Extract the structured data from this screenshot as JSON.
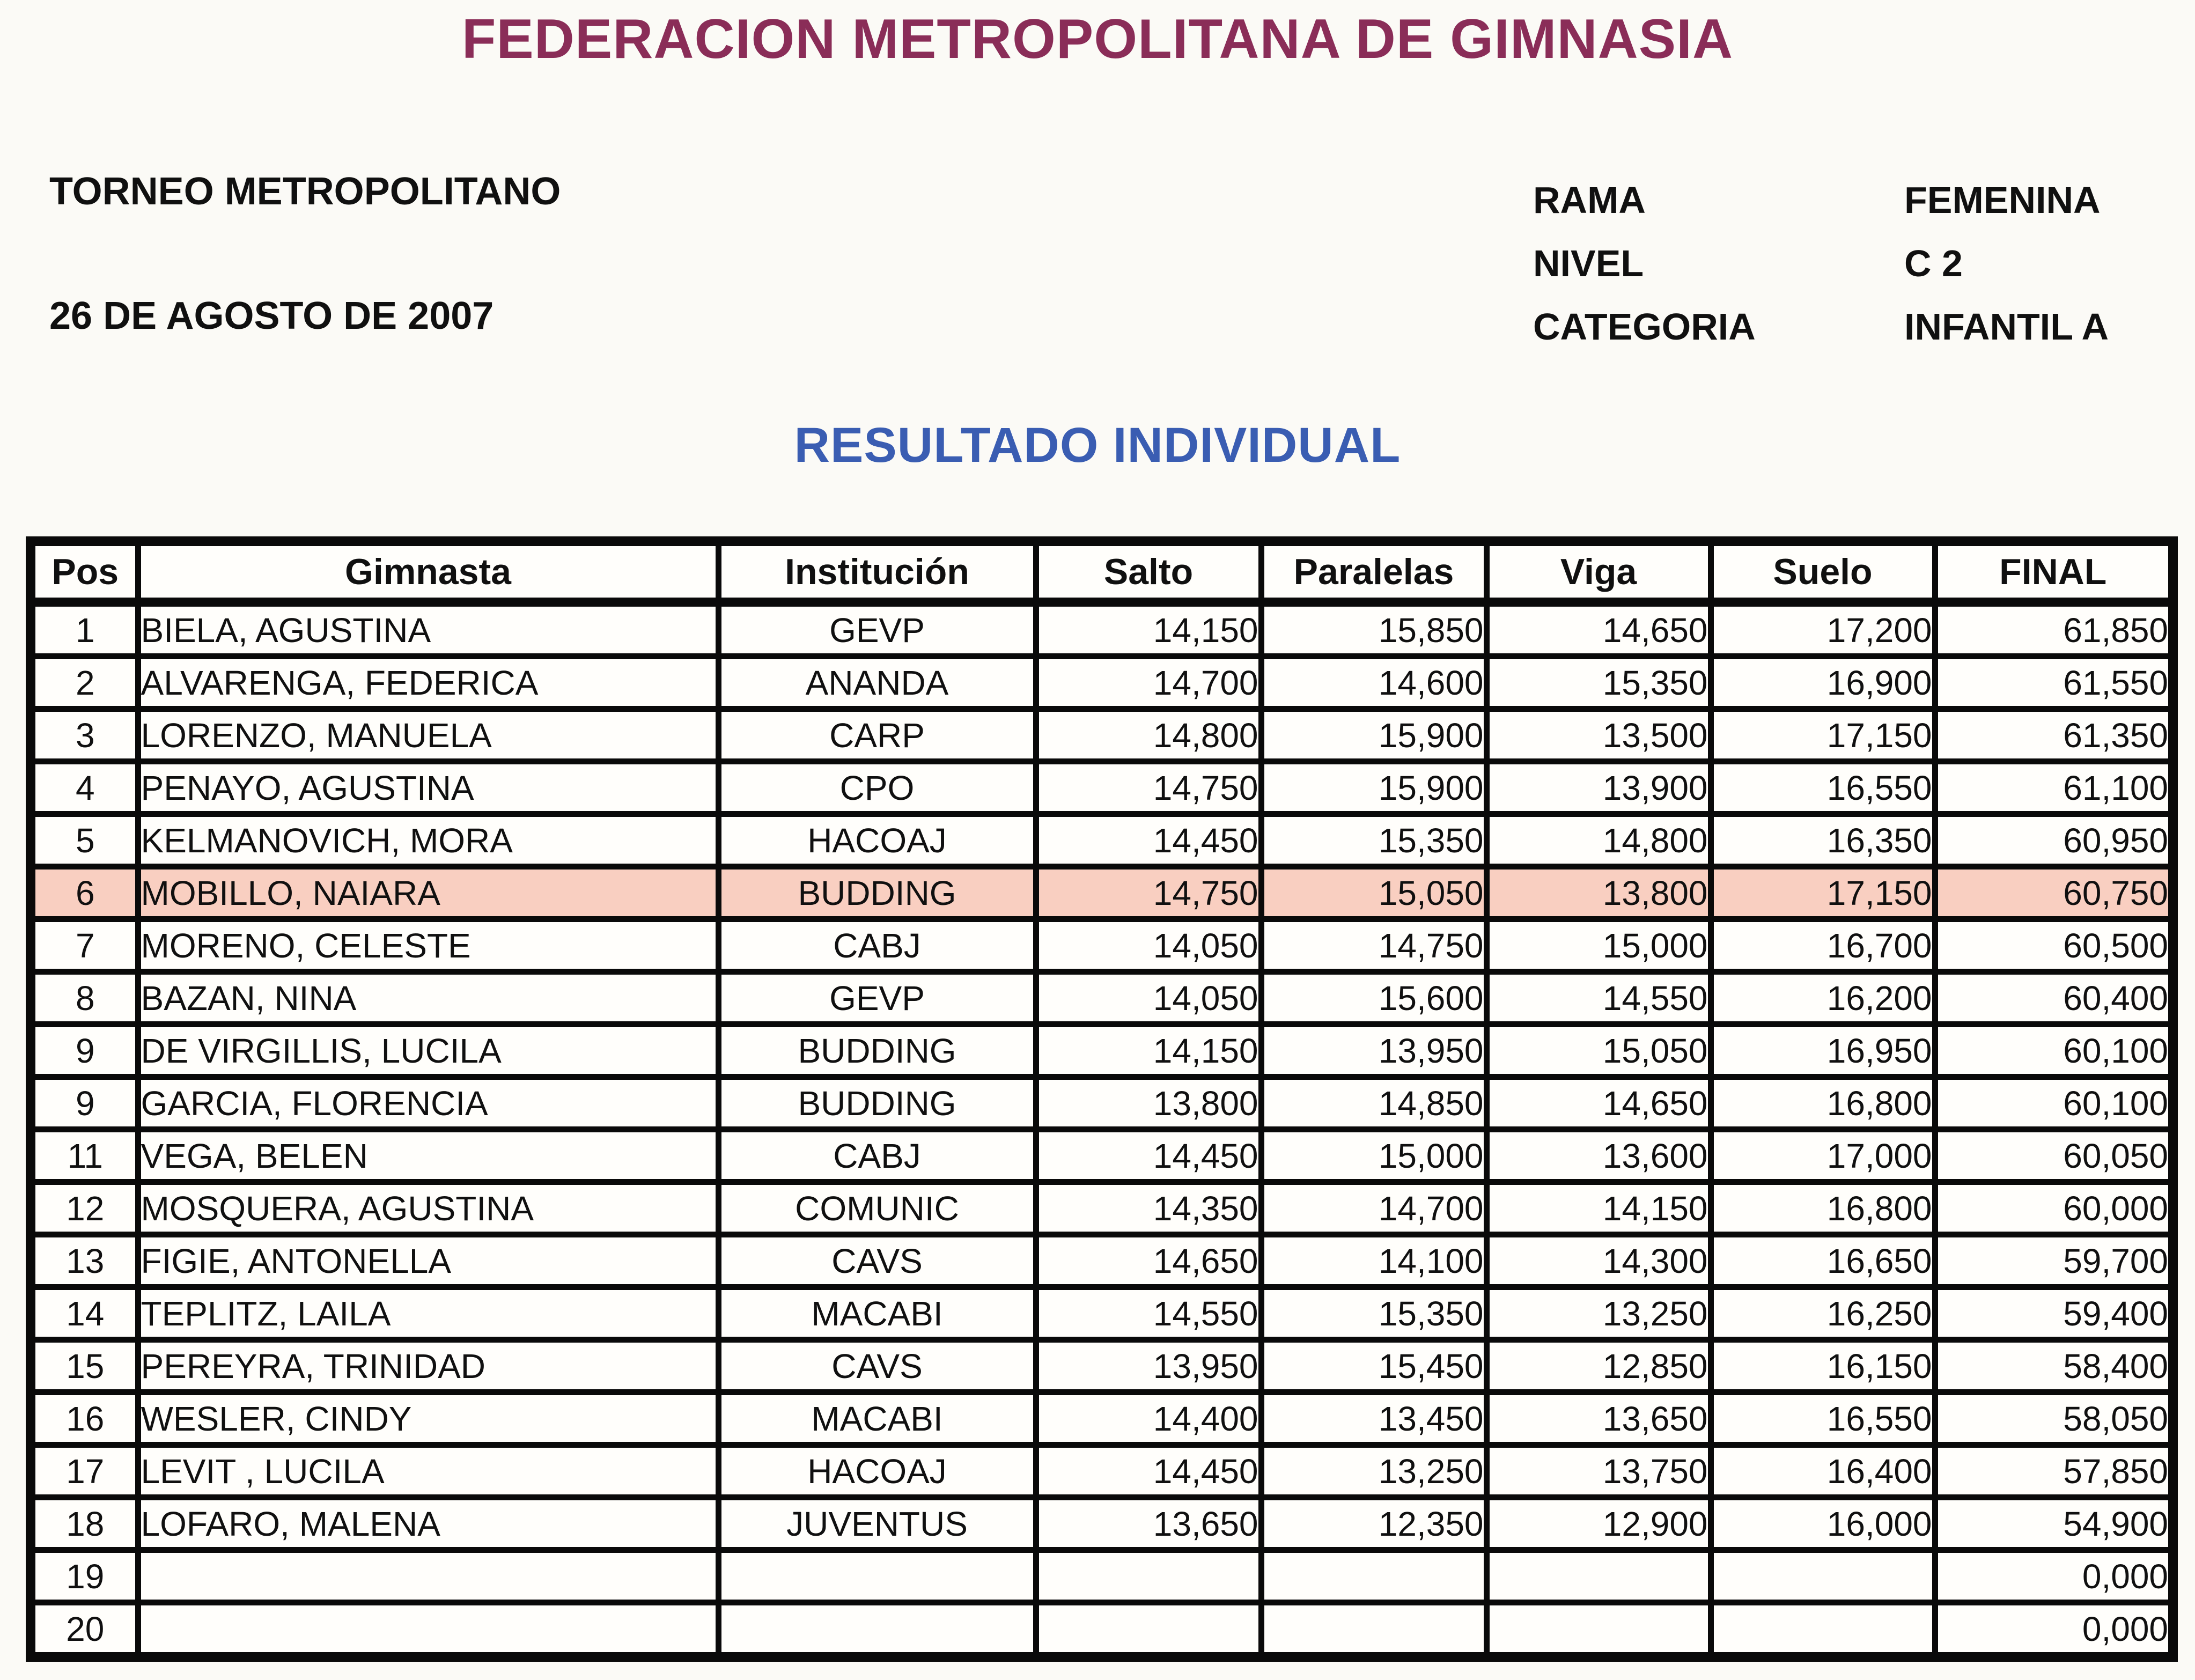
{
  "header": {
    "title": "FEDERACION METROPOLITANA DE GIMNASIA",
    "tournament": "TORNEO METROPOLITANO",
    "date": "26 DE AGOSTO DE 2007",
    "meta": [
      {
        "label": "RAMA",
        "value": "FEMENINA"
      },
      {
        "label": "NIVEL",
        "value": "C 2"
      },
      {
        "label": "CATEGORIA",
        "value": "INFANTIL A"
      }
    ],
    "subtitle": "RESULTADO INDIVIDUAL"
  },
  "colors": {
    "title": "#8a2d58",
    "subtitle": "#3a5db2",
    "highlight": "#f9cfc1"
  },
  "table": {
    "columns": [
      "Pos",
      "Gimnasta",
      "Institución",
      "Salto",
      "Paralelas",
      "Viga",
      "Suelo",
      "FINAL"
    ],
    "rows": [
      {
        "pos": "1",
        "gimnasta": "BIELA, AGUSTINA",
        "institucion": "GEVP",
        "salto": "14,150",
        "paralelas": "15,850",
        "viga": "14,650",
        "suelo": "17,200",
        "final": "61,850",
        "highlight": false
      },
      {
        "pos": "2",
        "gimnasta": "ALVARENGA, FEDERICA",
        "institucion": "ANANDA",
        "salto": "14,700",
        "paralelas": "14,600",
        "viga": "15,350",
        "suelo": "16,900",
        "final": "61,550",
        "highlight": false
      },
      {
        "pos": "3",
        "gimnasta": "LORENZO, MANUELA",
        "institucion": "CARP",
        "salto": "14,800",
        "paralelas": "15,900",
        "viga": "13,500",
        "suelo": "17,150",
        "final": "61,350",
        "highlight": false
      },
      {
        "pos": "4",
        "gimnasta": "PENAYO, AGUSTINA",
        "institucion": "CPO",
        "salto": "14,750",
        "paralelas": "15,900",
        "viga": "13,900",
        "suelo": "16,550",
        "final": "61,100",
        "highlight": false
      },
      {
        "pos": "5",
        "gimnasta": "KELMANOVICH, MORA",
        "institucion": "HACOAJ",
        "salto": "14,450",
        "paralelas": "15,350",
        "viga": "14,800",
        "suelo": "16,350",
        "final": "60,950",
        "highlight": false
      },
      {
        "pos": "6",
        "gimnasta": "MOBILLO, NAIARA",
        "institucion": "BUDDING",
        "salto": "14,750",
        "paralelas": "15,050",
        "viga": "13,800",
        "suelo": "17,150",
        "final": "60,750",
        "highlight": true
      },
      {
        "pos": "7",
        "gimnasta": "MORENO, CELESTE",
        "institucion": "CABJ",
        "salto": "14,050",
        "paralelas": "14,750",
        "viga": "15,000",
        "suelo": "16,700",
        "final": "60,500",
        "highlight": false
      },
      {
        "pos": "8",
        "gimnasta": "BAZAN, NINA",
        "institucion": "GEVP",
        "salto": "14,050",
        "paralelas": "15,600",
        "viga": "14,550",
        "suelo": "16,200",
        "final": "60,400",
        "highlight": false
      },
      {
        "pos": "9",
        "gimnasta": "DE VIRGILLIS, LUCILA",
        "institucion": "BUDDING",
        "salto": "14,150",
        "paralelas": "13,950",
        "viga": "15,050",
        "suelo": "16,950",
        "final": "60,100",
        "highlight": false
      },
      {
        "pos": "9",
        "gimnasta": "GARCIA, FLORENCIA",
        "institucion": "BUDDING",
        "salto": "13,800",
        "paralelas": "14,850",
        "viga": "14,650",
        "suelo": "16,800",
        "final": "60,100",
        "highlight": false
      },
      {
        "pos": "11",
        "gimnasta": "VEGA, BELEN",
        "institucion": "CABJ",
        "salto": "14,450",
        "paralelas": "15,000",
        "viga": "13,600",
        "suelo": "17,000",
        "final": "60,050",
        "highlight": false
      },
      {
        "pos": "12",
        "gimnasta": "MOSQUERA, AGUSTINA",
        "institucion": "COMUNIC",
        "salto": "14,350",
        "paralelas": "14,700",
        "viga": "14,150",
        "suelo": "16,800",
        "final": "60,000",
        "highlight": false
      },
      {
        "pos": "13",
        "gimnasta": "FIGIE, ANTONELLA",
        "institucion": "CAVS",
        "salto": "14,650",
        "paralelas": "14,100",
        "viga": "14,300",
        "suelo": "16,650",
        "final": "59,700",
        "highlight": false
      },
      {
        "pos": "14",
        "gimnasta": "TEPLITZ, LAILA",
        "institucion": "MACABI",
        "salto": "14,550",
        "paralelas": "15,350",
        "viga": "13,250",
        "suelo": "16,250",
        "final": "59,400",
        "highlight": false
      },
      {
        "pos": "15",
        "gimnasta": "PEREYRA, TRINIDAD",
        "institucion": "CAVS",
        "salto": "13,950",
        "paralelas": "15,450",
        "viga": "12,850",
        "suelo": "16,150",
        "final": "58,400",
        "highlight": false
      },
      {
        "pos": "16",
        "gimnasta": "WESLER, CINDY",
        "institucion": "MACABI",
        "salto": "14,400",
        "paralelas": "13,450",
        "viga": "13,650",
        "suelo": "16,550",
        "final": "58,050",
        "highlight": false
      },
      {
        "pos": "17",
        "gimnasta": "LEVIT , LUCILA",
        "institucion": "HACOAJ",
        "salto": "14,450",
        "paralelas": "13,250",
        "viga": "13,750",
        "suelo": "16,400",
        "final": "57,850",
        "highlight": false
      },
      {
        "pos": "18",
        "gimnasta": "LOFARO, MALENA",
        "institucion": "JUVENTUS",
        "salto": "13,650",
        "paralelas": "12,350",
        "viga": "12,900",
        "suelo": "16,000",
        "final": "54,900",
        "highlight": false
      },
      {
        "pos": "19",
        "gimnasta": "",
        "institucion": "",
        "salto": "",
        "paralelas": "",
        "viga": "",
        "suelo": "",
        "final": "0,000",
        "highlight": false
      },
      {
        "pos": "20",
        "gimnasta": "",
        "institucion": "",
        "salto": "",
        "paralelas": "",
        "viga": "",
        "suelo": "",
        "final": "0,000",
        "highlight": false
      }
    ]
  }
}
